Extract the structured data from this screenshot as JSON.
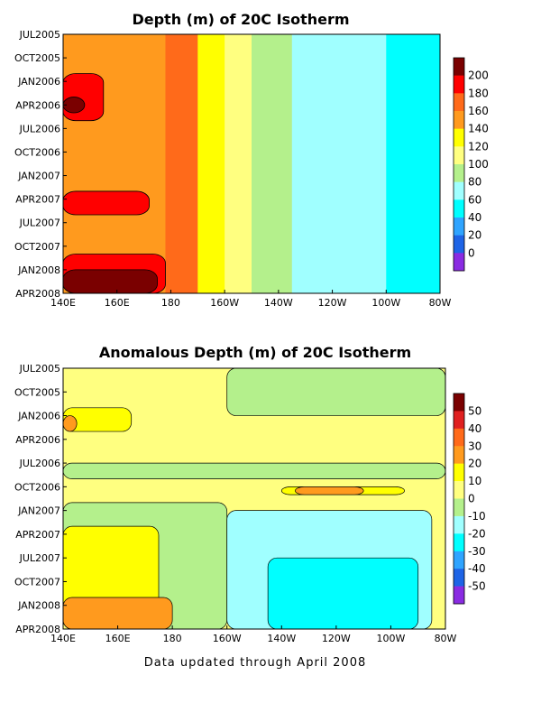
{
  "footnote": "Data updated through April 2008",
  "chart_data": [
    {
      "type": "heatmap",
      "title": "Depth (m) of 20C Isotherm",
      "xlabel": "",
      "ylabel": "",
      "x_ticks": [
        "140E",
        "160E",
        "180",
        "160W",
        "140W",
        "120W",
        "100W",
        "80W"
      ],
      "x_values_lon": [
        140,
        160,
        180,
        200,
        220,
        240,
        260,
        280
      ],
      "y_ticks": [
        "JUL2005",
        "OCT2005",
        "JAN2006",
        "APR2006",
        "JUL2006",
        "OCT2006",
        "JAN2007",
        "APR2007",
        "JUL2007",
        "OCT2007",
        "JAN2008",
        "APR2008"
      ],
      "xlim": [
        "140E",
        "80W"
      ],
      "ylim": [
        "APR2008",
        "JUL2005"
      ],
      "colorbar": {
        "labels": [
          "200",
          "180",
          "160",
          "140",
          "120",
          "100",
          "80",
          "60",
          "40",
          "20",
          "0"
        ],
        "colors": [
          "#7a0000",
          "#ff0000",
          "#ff6a1a",
          "#ff9a1e",
          "#ffff00",
          "#ffff80",
          "#b4f08c",
          "#a0ffff",
          "#00ffff",
          "#2fa4ff",
          "#1e64e6",
          "#8a2be2"
        ]
      },
      "bands": [
        {
          "lon": 140,
          "color": "#ff9a1e"
        },
        {
          "lon": 160,
          "color": "#ff9a1e"
        },
        {
          "lon": 178,
          "color": "#ff6a1a"
        },
        {
          "lon": 190,
          "color": "#ffff00"
        },
        {
          "lon": 200,
          "color": "#ffff80"
        },
        {
          "lon": 210,
          "color": "#b4f08c"
        },
        {
          "lon": 225,
          "color": "#a0ffff"
        },
        {
          "lon": 245,
          "color": "#a0ffff"
        },
        {
          "lon": 260,
          "color": "#00ffff"
        },
        {
          "lon": 280,
          "color": "#2fa4ff"
        }
      ],
      "hot_spots": [
        {
          "lon_from": 140,
          "lon_to": 155,
          "date_from": "DEC2005",
          "date_to": "JUN2006",
          "color": "#ff0000"
        },
        {
          "lon_from": 140,
          "lon_to": 148,
          "date_from": "MAR2006",
          "date_to": "MAY2006",
          "color": "#7a0000"
        },
        {
          "lon_from": 140,
          "lon_to": 172,
          "date_from": "MAR2007",
          "date_to": "JUN2007",
          "color": "#ff0000"
        },
        {
          "lon_from": 140,
          "lon_to": 178,
          "date_from": "NOV2007",
          "date_to": "APR2008",
          "color": "#ff0000"
        },
        {
          "lon_from": 140,
          "lon_to": 175,
          "date_from": "JAN2008",
          "date_to": "APR2008",
          "color": "#7a0000"
        }
      ]
    },
    {
      "type": "heatmap",
      "title": "Anomalous Depth (m) of 20C Isotherm",
      "xlabel": "",
      "ylabel": "",
      "x_ticks": [
        "140E",
        "160E",
        "180",
        "160W",
        "140W",
        "120W",
        "100W",
        "80W"
      ],
      "x_values_lon": [
        140,
        160,
        180,
        200,
        220,
        240,
        260,
        280
      ],
      "y_ticks": [
        "JUL2005",
        "OCT2005",
        "JAN2006",
        "APR2006",
        "JUL2006",
        "OCT2006",
        "JAN2007",
        "APR2007",
        "JUL2007",
        "OCT2007",
        "JAN2008",
        "APR2008"
      ],
      "xlim": [
        "140E",
        "80W"
      ],
      "ylim": [
        "APR2008",
        "JUL2005"
      ],
      "colorbar": {
        "labels": [
          "50",
          "40",
          "30",
          "20",
          "10",
          "0",
          "-10",
          "-20",
          "-30",
          "-40",
          "-50"
        ],
        "colors": [
          "#7a0000",
          "#e02020",
          "#ff6a1a",
          "#ff9a1e",
          "#ffff00",
          "#ffff80",
          "#b4f08c",
          "#a0ffff",
          "#00ffff",
          "#2fa4ff",
          "#1e64e6",
          "#8a2be2"
        ]
      },
      "regions": [
        {
          "lon_from": 140,
          "lon_to": 280,
          "date_from": "JUL2005",
          "date_to": "APR2008",
          "color": "#ffff80"
        },
        {
          "lon_from": 200,
          "lon_to": 280,
          "date_from": "JUL2005",
          "date_to": "JAN2006",
          "color": "#b4f08c"
        },
        {
          "lon_from": 140,
          "lon_to": 165,
          "date_from": "DEC2005",
          "date_to": "MAR2006",
          "color": "#ffff00"
        },
        {
          "lon_from": 140,
          "lon_to": 280,
          "date_from": "JUL2006",
          "date_to": "SEP2006",
          "color": "#b4f08c"
        },
        {
          "lon_from": 220,
          "lon_to": 265,
          "date_from": "OCT2006",
          "date_to": "NOV2006",
          "color": "#ffff00"
        },
        {
          "lon_from": 225,
          "lon_to": 250,
          "date_from": "OCT2006",
          "date_to": "NOV2006",
          "color": "#ff9a1e"
        },
        {
          "lon_from": 140,
          "lon_to": 200,
          "date_from": "DEC2006",
          "date_to": "APR2008",
          "color": "#b4f08c"
        },
        {
          "lon_from": 200,
          "lon_to": 275,
          "date_from": "JAN2007",
          "date_to": "APR2008",
          "color": "#a0ffff"
        },
        {
          "lon_from": 215,
          "lon_to": 270,
          "date_from": "JUL2007",
          "date_to": "APR2008",
          "color": "#00ffff"
        },
        {
          "lon_from": 140,
          "lon_to": 175,
          "date_from": "MAR2007",
          "date_to": "APR2008",
          "color": "#ffff00"
        },
        {
          "lon_from": 140,
          "lon_to": 180,
          "date_from": "DEC2007",
          "date_to": "APR2008",
          "color": "#ff9a1e"
        },
        {
          "lon_from": 140,
          "lon_to": 145,
          "date_from": "JAN2006",
          "date_to": "MAR2006",
          "color": "#ff9a1e"
        }
      ]
    }
  ]
}
